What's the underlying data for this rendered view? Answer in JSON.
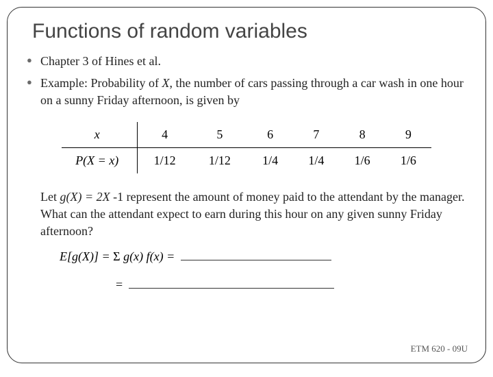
{
  "title": "Functions of random variables",
  "bullets": [
    {
      "text": "Chapter 3 of Hines et al."
    },
    {
      "text_prefix": "Example: Probability of ",
      "text_ital": "X",
      "text_suffix": ", the number of cars passing through a car wash in one hour on a sunny Friday afternoon, is given by"
    }
  ],
  "table": {
    "row_label_1": "x",
    "row_label_2": "P(X = x)",
    "x_values": [
      "4",
      "5",
      "6",
      "7",
      "8",
      "9"
    ],
    "p_values": [
      "1/12",
      "1/12",
      "1/4",
      "1/4",
      "1/6",
      "1/6"
    ],
    "fontsize": 18,
    "border_color": "#000000",
    "cell_padding": 8
  },
  "let_prefix": "Let ",
  "let_gx": "g(X) = 2X ",
  "let_minus": "-1 represent the amount of money paid to the attendant by the manager. What can the attendant expect to earn during this hour on any given sunny Friday afternoon?",
  "equation": {
    "lhs": "E[g(X)]  = ",
    "sigma": "Σ",
    "rhs": " g(x) f(x) = ",
    "blank1_width": 220,
    "eq2_prefix": "= ",
    "blank2_width": 300
  },
  "footer": "ETM 620 - 09U",
  "colors": {
    "title": "#444444",
    "text": "#222222",
    "bullet": "#6b6b6b",
    "border": "#333333",
    "background": "#ffffff"
  }
}
